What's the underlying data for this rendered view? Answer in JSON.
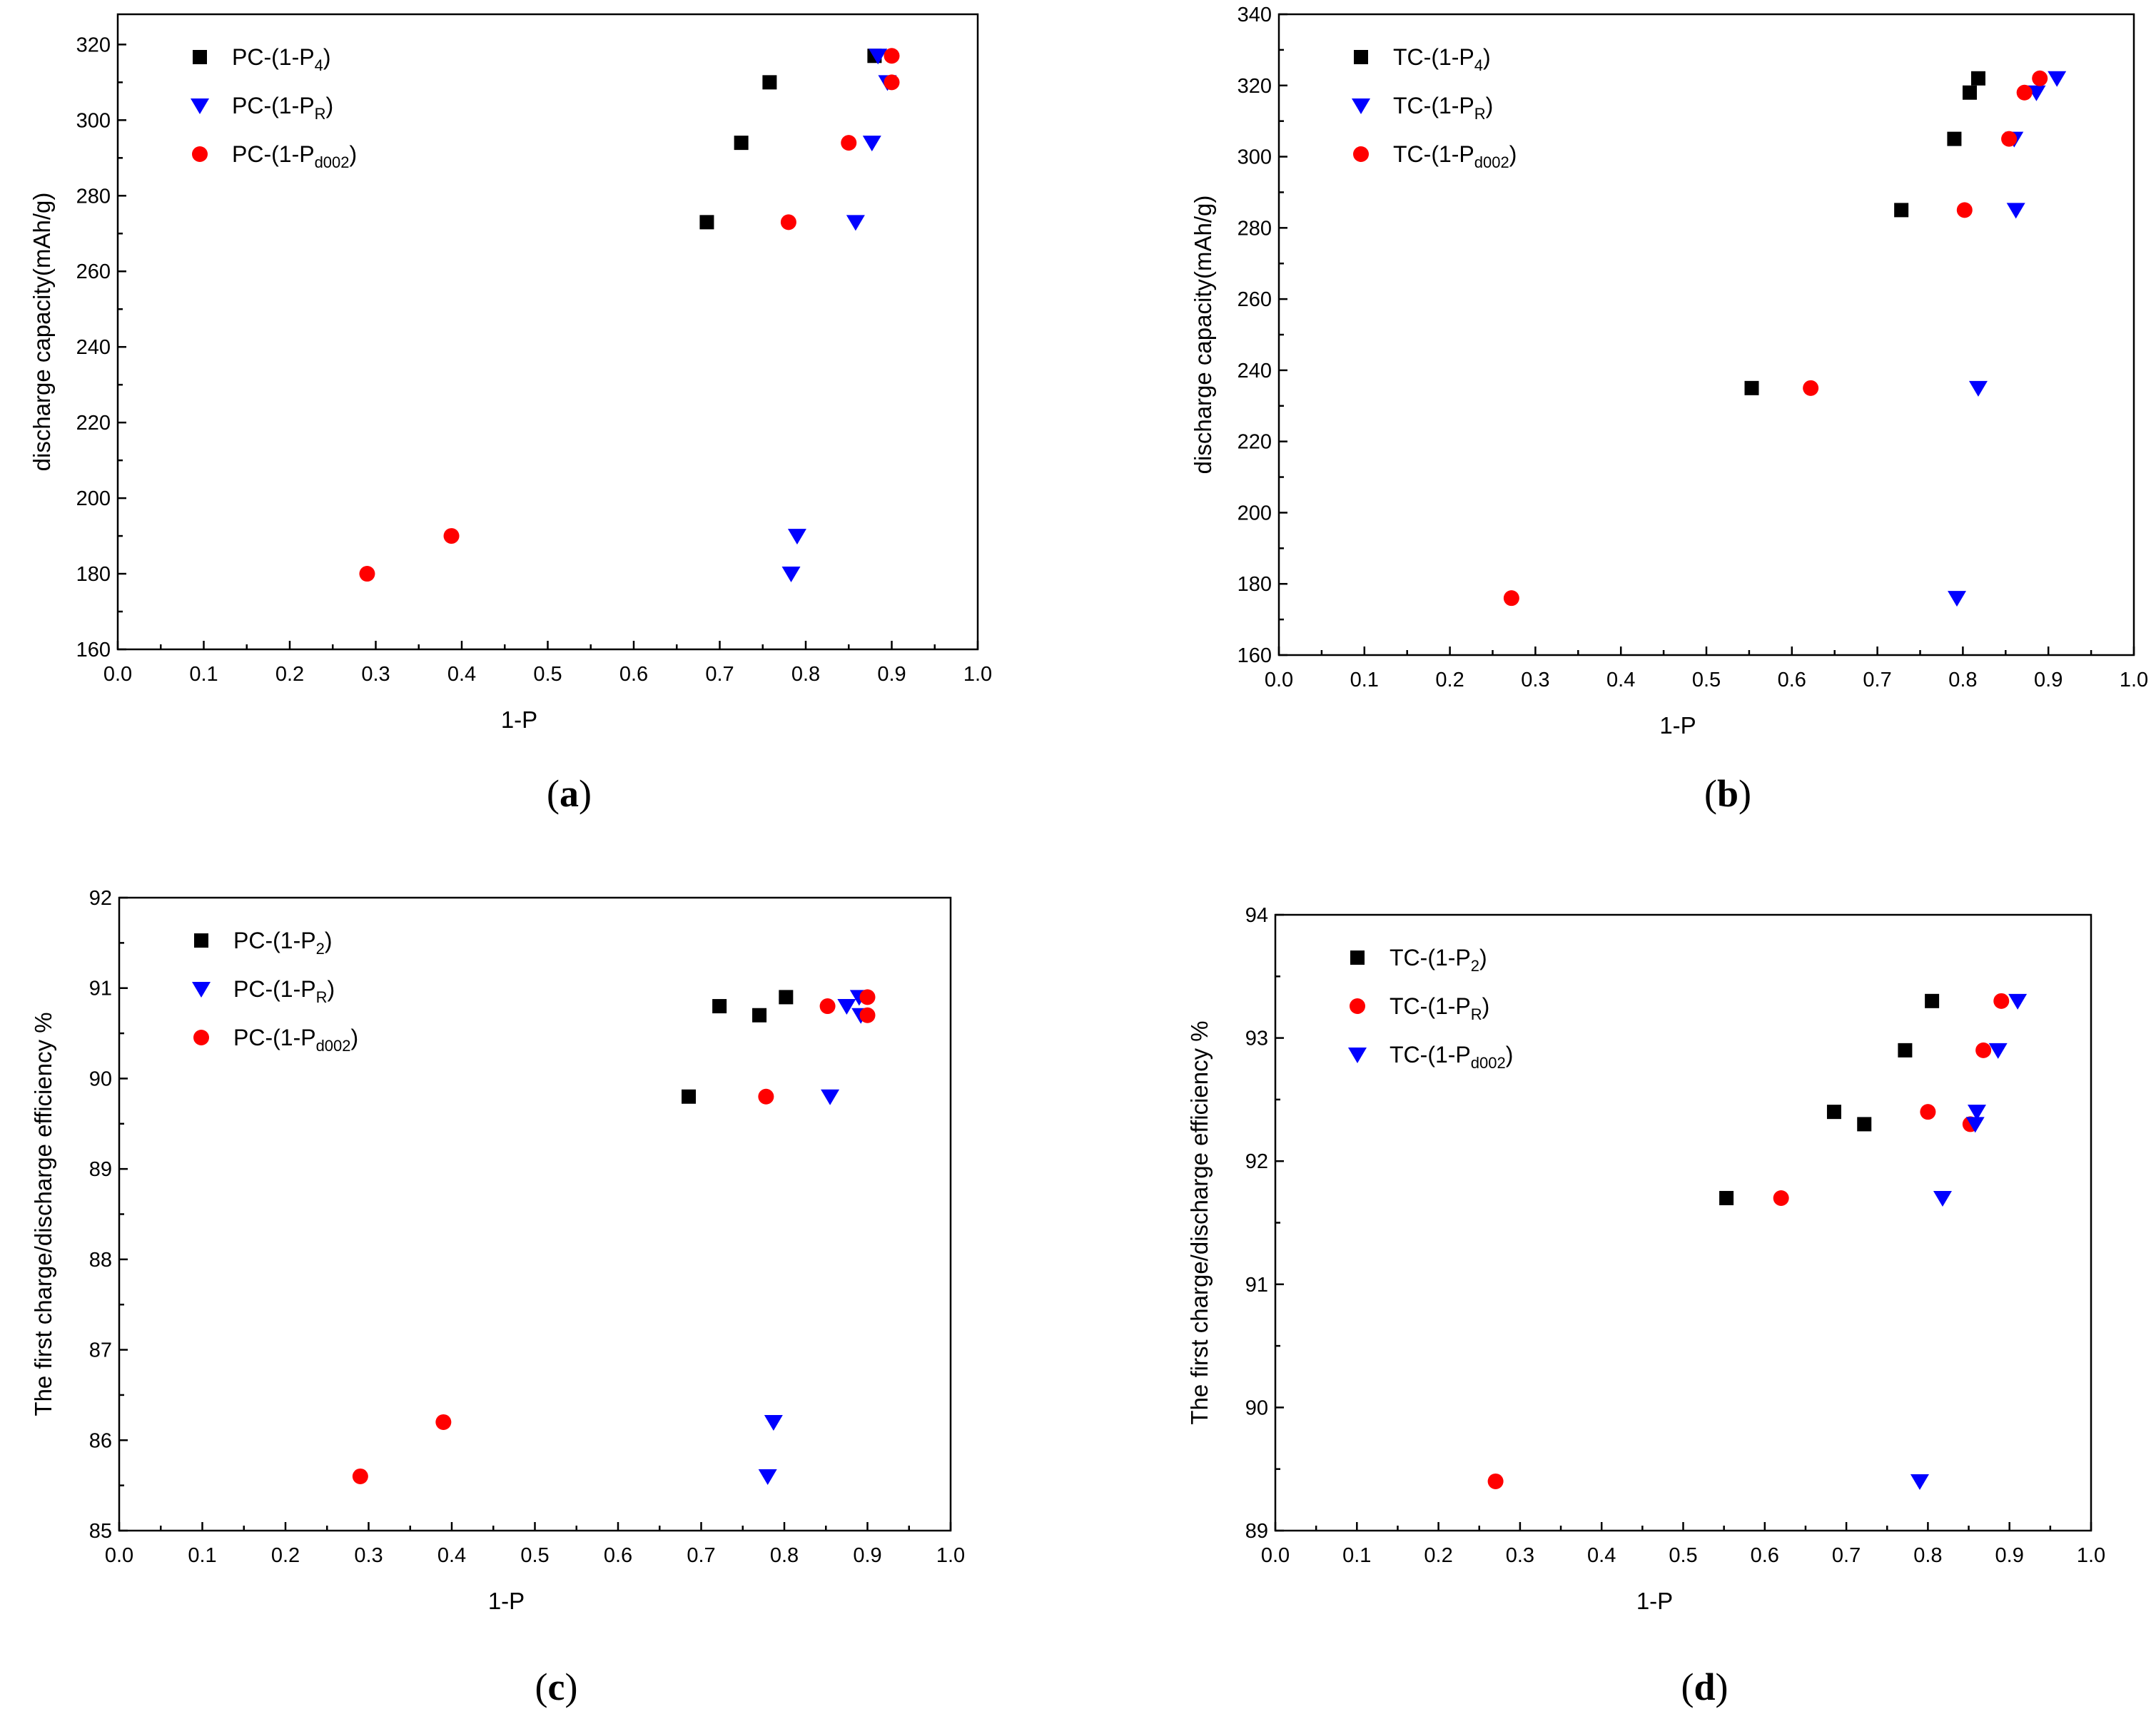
{
  "chart_data": [
    {
      "type": "scatter",
      "panel_label": "(a)",
      "caption_letter": "a",
      "xlabel": "1-P",
      "ylabel": "discharge capacity(mAh/g)",
      "xlim": [
        0.0,
        1.0
      ],
      "ylim": [
        160,
        320
      ],
      "x_ticks": [
        0.0,
        0.1,
        0.2,
        0.3,
        0.4,
        0.5,
        0.6,
        0.7,
        0.8,
        0.9,
        1.0
      ],
      "x_tick_labels": [
        "0.0",
        "0.1",
        "0.2",
        "0.3",
        "0.4",
        "0.5",
        "0.6",
        "0.7",
        "0.8",
        "0.9",
        "1.0"
      ],
      "y_ticks": [
        160,
        180,
        200,
        220,
        240,
        260,
        280,
        300,
        320
      ],
      "y_tick_labels": [
        "160",
        "180",
        "200",
        "220",
        "240",
        "260",
        "280",
        "300",
        "320"
      ],
      "ytop_value": 328,
      "legend_position": "top-left",
      "series": [
        {
          "name": "PC-(1-P",
          "sub": "4",
          "suffix": ")",
          "marker": "square",
          "color": "#000000",
          "points": [
            [
              0.685,
              273
            ],
            [
              0.725,
              294
            ],
            [
              0.758,
              310
            ],
            [
              0.88,
              317
            ]
          ]
        },
        {
          "name": "PC-(1-P",
          "sub": "R",
          "suffix": ")",
          "marker": "triangle-down",
          "color": "#0000FF",
          "points": [
            [
              0.783,
              180
            ],
            [
              0.79,
              190
            ],
            [
              0.858,
              273
            ],
            [
              0.877,
              294
            ],
            [
              0.895,
              310
            ],
            [
              0.884,
              317
            ]
          ]
        },
        {
          "name": "PC-(1-P",
          "sub": "d002",
          "suffix": ")",
          "marker": "circle",
          "color": "#FF0000",
          "points": [
            [
              0.29,
              180
            ],
            [
              0.388,
              190
            ],
            [
              0.78,
              273
            ],
            [
              0.85,
              294
            ],
            [
              0.9,
              310
            ],
            [
              0.9,
              317
            ]
          ]
        }
      ]
    },
    {
      "type": "scatter",
      "panel_label": "(b)",
      "caption_letter": "b",
      "xlabel": "1-P",
      "ylabel": "discharge capacity(mAh/g)",
      "xlim": [
        0.0,
        1.0
      ],
      "ylim": [
        160,
        340
      ],
      "x_ticks": [
        0.0,
        0.1,
        0.2,
        0.3,
        0.4,
        0.5,
        0.6,
        0.7,
        0.8,
        0.9,
        1.0
      ],
      "x_tick_labels": [
        "0.0",
        "0.1",
        "0.2",
        "0.3",
        "0.4",
        "0.5",
        "0.6",
        "0.7",
        "0.8",
        "0.9",
        "1.0"
      ],
      "y_ticks": [
        160,
        180,
        200,
        220,
        240,
        260,
        280,
        300,
        320,
        340
      ],
      "y_tick_labels": [
        "160",
        "180",
        "200",
        "220",
        "240",
        "260",
        "280",
        "300",
        "320",
        "340"
      ],
      "ytop_value": 340,
      "legend_position": "top-left",
      "series": [
        {
          "name": "TC-(1-P",
          "sub": "4",
          "suffix": ")",
          "marker": "square",
          "color": "#000000",
          "points": [
            [
              0.553,
              235
            ],
            [
              0.728,
              285
            ],
            [
              0.79,
              305
            ],
            [
              0.808,
              318
            ],
            [
              0.818,
              322
            ]
          ]
        },
        {
          "name": "TC-(1-P",
          "sub": "R",
          "suffix": ")",
          "marker": "triangle-down",
          "color": "#0000FF",
          "points": [
            [
              0.793,
              176
            ],
            [
              0.818,
              235
            ],
            [
              0.862,
              285
            ],
            [
              0.86,
              305
            ],
            [
              0.886,
              318
            ],
            [
              0.91,
              322
            ]
          ]
        },
        {
          "name": "TC-(1-P",
          "sub": "d002",
          "suffix": ")",
          "marker": "circle",
          "color": "#FF0000",
          "points": [
            [
              0.272,
              176
            ],
            [
              0.622,
              235
            ],
            [
              0.802,
              285
            ],
            [
              0.854,
              305
            ],
            [
              0.872,
              318
            ],
            [
              0.89,
              322
            ]
          ]
        }
      ]
    },
    {
      "type": "scatter",
      "panel_label": "(c)",
      "caption_letter": "c",
      "xlabel": "1-P",
      "ylabel": "The first charge/discharge efficiency %",
      "xlim": [
        0.0,
        1.0
      ],
      "ylim": [
        85,
        92
      ],
      "x_ticks": [
        0.0,
        0.1,
        0.2,
        0.3,
        0.4,
        0.5,
        0.6,
        0.7,
        0.8,
        0.9,
        1.0
      ],
      "x_tick_labels": [
        "0.0",
        "0.1",
        "0.2",
        "0.3",
        "0.4",
        "0.5",
        "0.6",
        "0.7",
        "0.8",
        "0.9",
        "1.0"
      ],
      "y_ticks": [
        85,
        86,
        87,
        88,
        89,
        90,
        91,
        92
      ],
      "y_tick_labels": [
        "85",
        "86",
        "87",
        "88",
        "89",
        "90",
        "91",
        "92"
      ],
      "ytop_value": 92,
      "legend_position": "top-left",
      "series": [
        {
          "name": "PC-(1-P",
          "sub": "2",
          "suffix": ")",
          "marker": "square",
          "color": "#000000",
          "points": [
            [
              0.685,
              89.8
            ],
            [
              0.722,
              90.8
            ],
            [
              0.77,
              90.7
            ],
            [
              0.802,
              90.9
            ]
          ]
        },
        {
          "name": "PC-(1-P",
          "sub": "R",
          "suffix": ")",
          "marker": "triangle-down",
          "color": "#0000FF",
          "points": [
            [
              0.78,
              85.6
            ],
            [
              0.787,
              86.2
            ],
            [
              0.855,
              89.8
            ],
            [
              0.875,
              90.8
            ],
            [
              0.892,
              90.7
            ],
            [
              0.89,
              90.9
            ]
          ]
        },
        {
          "name": "PC-(1-P",
          "sub": "d002",
          "suffix": ")",
          "marker": "circle",
          "color": "#FF0000",
          "points": [
            [
              0.29,
              85.6
            ],
            [
              0.39,
              86.2
            ],
            [
              0.778,
              89.8
            ],
            [
              0.852,
              90.8
            ],
            [
              0.9,
              90.7
            ],
            [
              0.9,
              90.9
            ]
          ]
        }
      ]
    },
    {
      "type": "scatter",
      "panel_label": "(d)",
      "caption_letter": "d",
      "xlabel": "1-P",
      "ylabel": "The first charge/discharge efficiency %",
      "xlim": [
        0.0,
        1.0
      ],
      "ylim": [
        89,
        94
      ],
      "x_ticks": [
        0.0,
        0.1,
        0.2,
        0.3,
        0.4,
        0.5,
        0.6,
        0.7,
        0.8,
        0.9,
        1.0
      ],
      "x_tick_labels": [
        "0.0",
        "0.1",
        "0.2",
        "0.3",
        "0.4",
        "0.5",
        "0.6",
        "0.7",
        "0.8",
        "0.9",
        "1.0"
      ],
      "y_ticks": [
        89,
        90,
        91,
        92,
        93,
        94
      ],
      "y_tick_labels": [
        "89",
        "90",
        "91",
        "92",
        "93",
        "94"
      ],
      "ytop_value": 94,
      "legend_position": "top-left",
      "series": [
        {
          "name": "TC-(1-P",
          "sub": "2",
          "suffix": ")",
          "marker": "square",
          "color": "#000000",
          "points": [
            [
              0.553,
              91.7
            ],
            [
              0.685,
              92.4
            ],
            [
              0.722,
              92.3
            ],
            [
              0.772,
              92.9
            ],
            [
              0.805,
              93.3
            ]
          ]
        },
        {
          "name": "TC-(1-P",
          "sub": "R",
          "suffix": ")",
          "marker": "circle",
          "color": "#FF0000",
          "points": [
            [
              0.27,
              89.4
            ],
            [
              0.62,
              91.7
            ],
            [
              0.8,
              92.4
            ],
            [
              0.852,
              92.3
            ],
            [
              0.868,
              92.9
            ],
            [
              0.89,
              93.3
            ]
          ]
        },
        {
          "name": "TC-(1-P",
          "sub": "d002",
          "suffix": ")",
          "marker": "triangle-down",
          "color": "#0000FF",
          "points": [
            [
              0.79,
              89.4
            ],
            [
              0.818,
              91.7
            ],
            [
              0.86,
              92.4
            ],
            [
              0.858,
              92.3
            ],
            [
              0.886,
              92.9
            ],
            [
              0.91,
              93.3
            ]
          ]
        }
      ]
    }
  ]
}
